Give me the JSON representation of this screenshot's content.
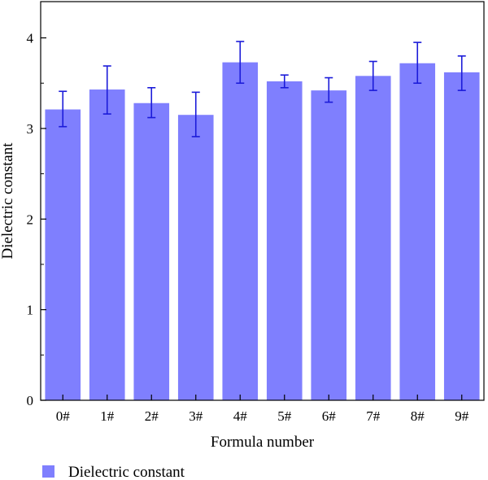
{
  "chart_data": {
    "type": "bar",
    "categories": [
      "0#",
      "1#",
      "2#",
      "3#",
      "4#",
      "5#",
      "6#",
      "7#",
      "8#",
      "9#"
    ],
    "series": [
      {
        "name": "Dielectric constant",
        "values": [
          3.21,
          3.43,
          3.28,
          3.15,
          3.73,
          3.52,
          3.42,
          3.58,
          3.72,
          3.62
        ],
        "err_low": [
          3.02,
          3.16,
          3.12,
          2.91,
          3.5,
          3.45,
          3.29,
          3.42,
          3.5,
          3.42
        ],
        "err_high": [
          3.41,
          3.69,
          3.45,
          3.4,
          3.96,
          3.59,
          3.56,
          3.74,
          3.95,
          3.8
        ],
        "color": "#7f7ffe",
        "error_color": "#1b1bd9"
      }
    ],
    "xlabel": "Formula number",
    "ylabel": "Dielectric constant",
    "ylim": [
      0,
      4.4
    ],
    "yticks": [
      "0",
      "1",
      "2",
      "3",
      "4"
    ],
    "grid": false,
    "legend_position": "bottom-left"
  }
}
